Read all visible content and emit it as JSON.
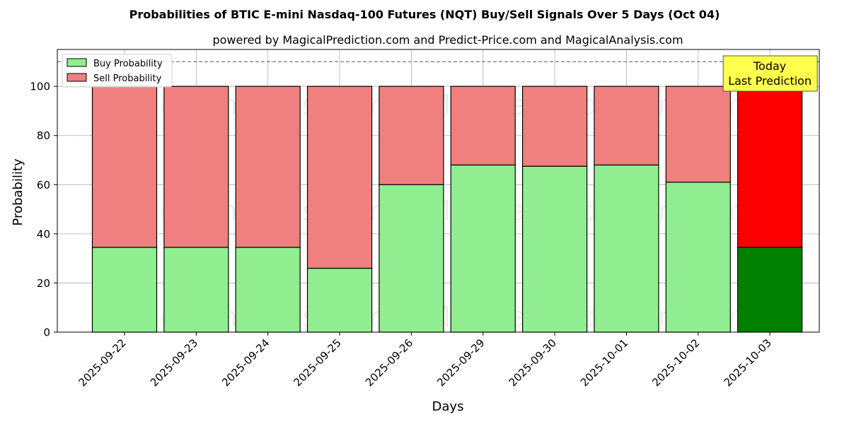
{
  "chart_data": {
    "type": "bar",
    "title": "Probabilities of BTIC E-mini Nasdaq-100 Futures (NQT) Buy/Sell Signals Over 5 Days (Oct 04)",
    "subtitle": "powered by MagicalPrediction.com and Predict-Price.com and MagicalAnalysis.com",
    "xlabel": "Days",
    "ylabel": "Probability",
    "ylim": [
      0,
      115
    ],
    "yticks": [
      0,
      20,
      40,
      60,
      80,
      100
    ],
    "threshold_line": 110,
    "grid": true,
    "legend_position": "top-left",
    "categories": [
      "2025-09-22",
      "2025-09-23",
      "2025-09-24",
      "2025-09-25",
      "2025-09-26",
      "2025-09-29",
      "2025-09-30",
      "2025-10-01",
      "2025-10-02",
      "2025-10-03"
    ],
    "series": [
      {
        "name": "Buy Probability",
        "values": [
          34.5,
          34.5,
          34.5,
          26,
          60,
          68,
          67.5,
          68,
          61,
          34.5
        ],
        "color": "#90ee90",
        "highlight_color": "#008000"
      },
      {
        "name": "Sell Probability",
        "values": [
          65.5,
          65.5,
          65.5,
          74,
          40,
          32,
          32.5,
          32,
          39,
          65.5
        ],
        "color": "#f08080",
        "highlight_color": "#ff0000"
      }
    ],
    "highlight_index": 9,
    "annotation": {
      "line1": "Today",
      "line2": "Last Prediction",
      "background": "#ffff4d"
    },
    "watermarks": [
      "MagicalAnalysis.com",
      "MagicalPrediction.com",
      "MagicalAnalysis.com",
      "MagicalPrediction.com",
      "MagicalAnalysis.com",
      "MagicalPrediction.com"
    ]
  }
}
